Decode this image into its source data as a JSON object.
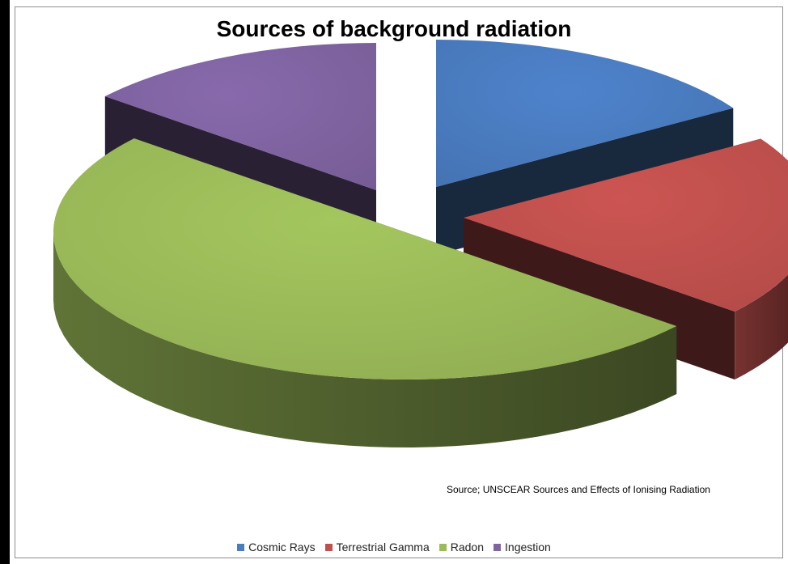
{
  "chart_data": {
    "type": "pie",
    "title": "Sources of background radiation",
    "source_note": "Source; UNSCEAR Sources and Effects of Ionising Radiation",
    "legend_position": "bottom",
    "categories": [
      "Cosmic Rays",
      "Terrestrial Gamma",
      "Radon",
      "Ingestion"
    ],
    "values": [
      16,
      20,
      50,
      14
    ],
    "colors": [
      "#4a7cc0",
      "#c0504d",
      "#9bbb59",
      "#8064a2"
    ],
    "exploded": true,
    "three_d": true
  }
}
